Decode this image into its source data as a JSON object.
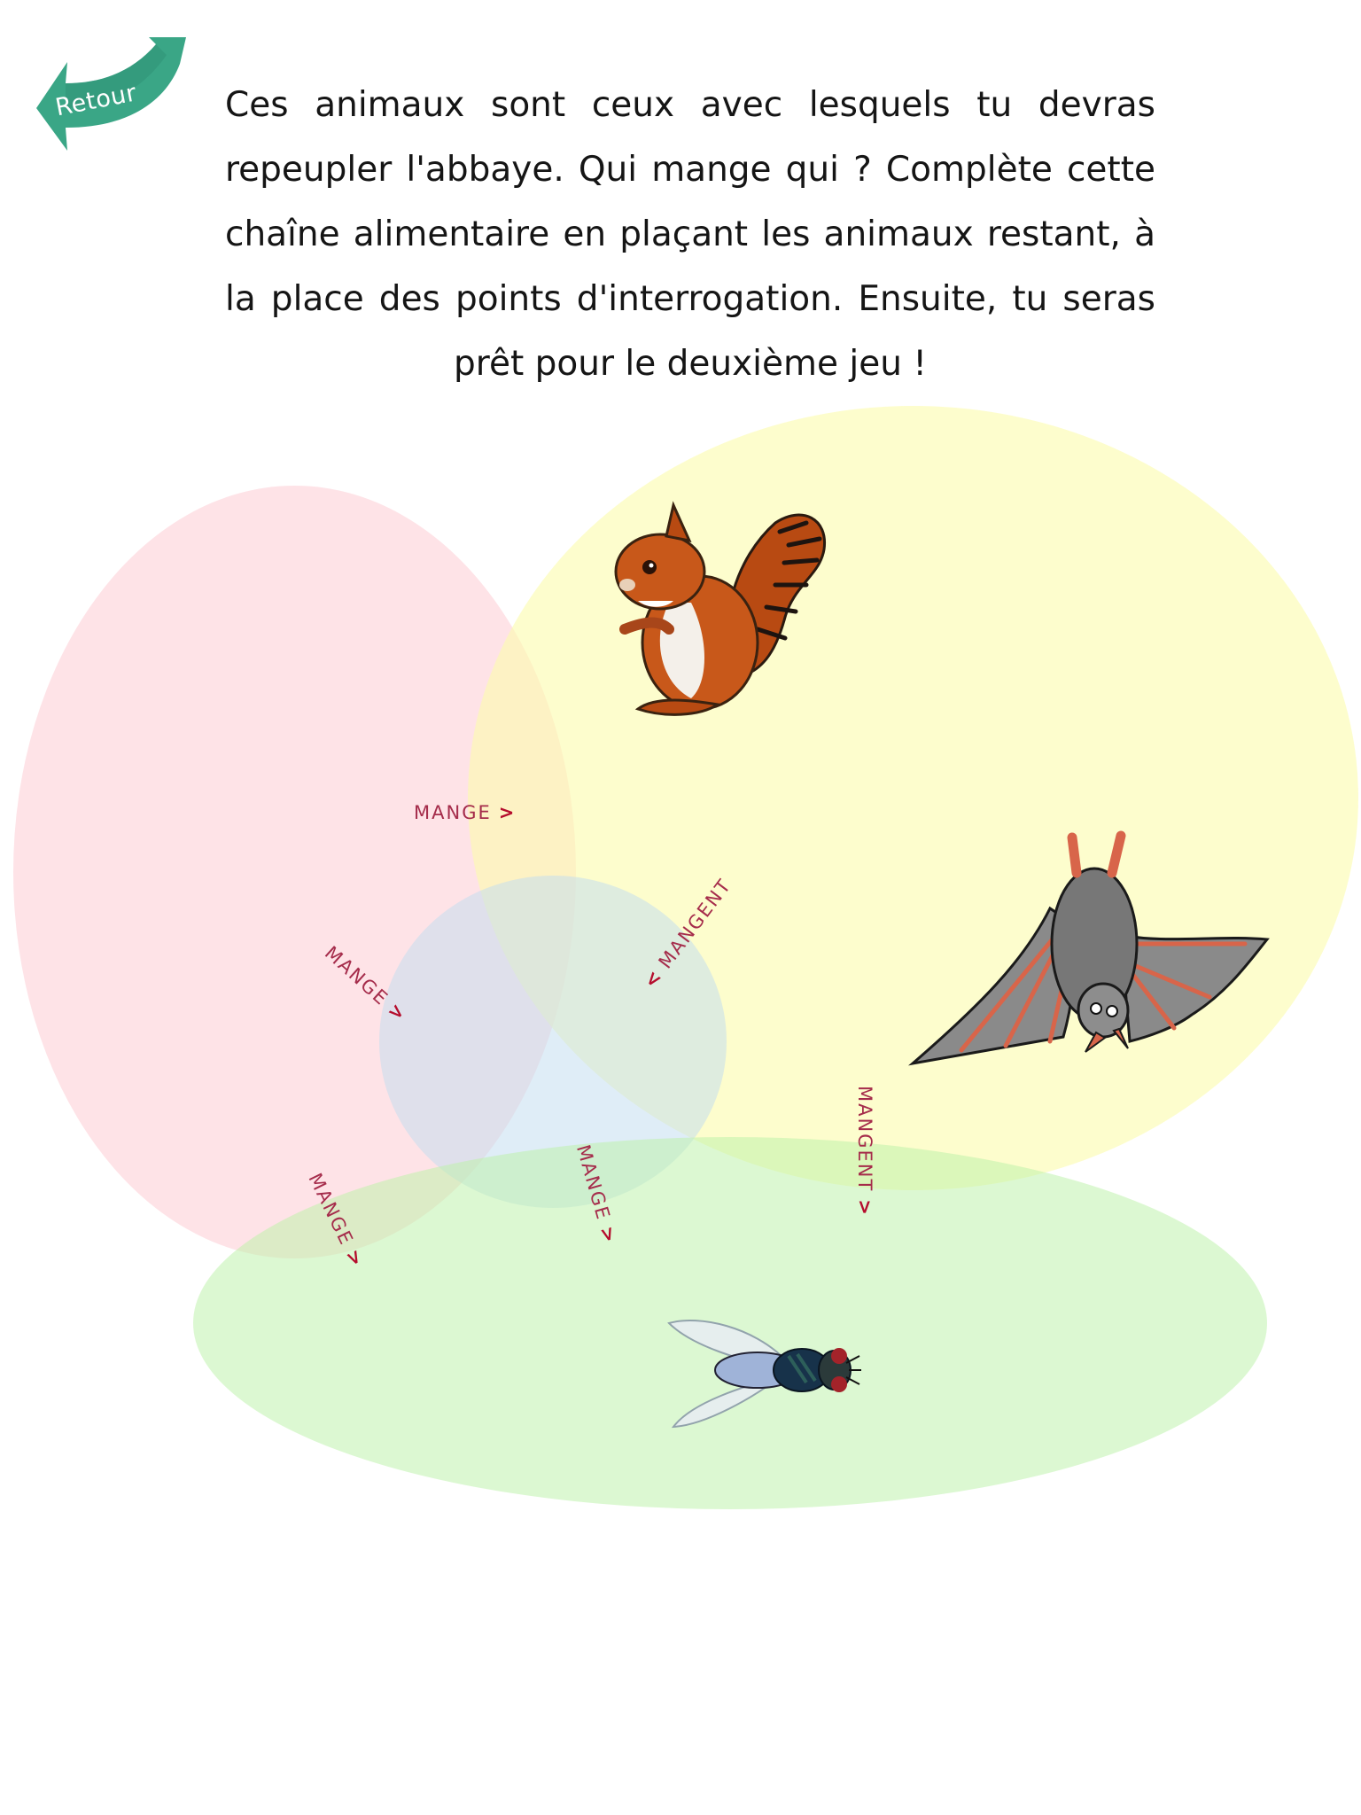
{
  "back_button": {
    "label": "Retour",
    "icon": "curved-left-arrow-icon",
    "color": "#3aa686"
  },
  "instructions": {
    "text": "Ces animaux sont ceux avec lesquels tu devras repeupler l'abbaye. Qui mange qui ? Complète cette chaîne alimentaire en plaçant les animaux restant, à la place des points d'interrogation. Ensuite, tu seras prêt pour le deuxième jeu !"
  },
  "zones": {
    "red": "#fdd8de",
    "yellow": "#fcfcae",
    "blue": "#c2dcf0",
    "green": "#bcf2a8"
  },
  "relations": [
    {
      "label": "MANGE",
      "arrow": ">"
    },
    {
      "label": "MANGE",
      "arrow": ">"
    },
    {
      "label": "MANGENT",
      "arrow": "<"
    },
    {
      "label": "MANGE",
      "arrow": ">"
    },
    {
      "label": "MANGE",
      "arrow": ">"
    },
    {
      "label": "MANGENT",
      "arrow": ">"
    }
  ],
  "animals": {
    "squirrel": "squirrel-image",
    "bat": "bat-image",
    "fly": "fly-image"
  }
}
